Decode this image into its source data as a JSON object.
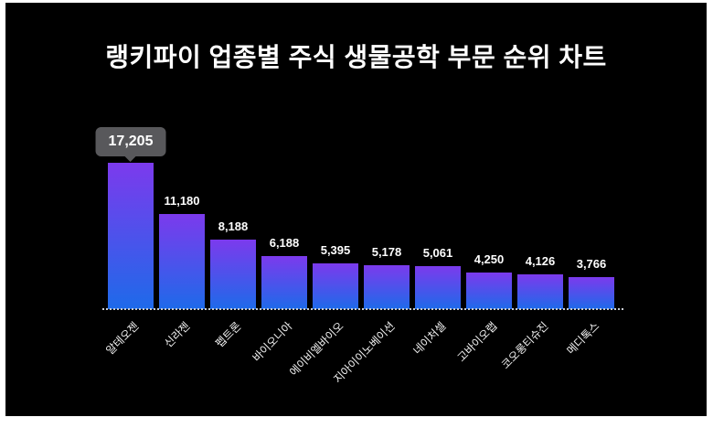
{
  "page": {
    "background": "#ffffff",
    "canvas_background": "#000000"
  },
  "header": {
    "title": "랭키파이 업종별 주식 생물공학 부문 순위 차트"
  },
  "tooltip": {
    "value": "17,205",
    "background": "#58585b",
    "attached_to_category": "알테오젠"
  },
  "chart_data": {
    "type": "bar",
    "title": "랭키파이 업종별 주식 생물공학 부문 순위 차트",
    "categories": [
      "알테오젠",
      "신라젠",
      "펩트론",
      "바이오니아",
      "에이비엘바이오",
      "지아이이노베이션",
      "네이처셀",
      "고바이오랩",
      "코오롱티슈진",
      "메디톡스"
    ],
    "values": [
      17205,
      11180,
      8188,
      6188,
      5395,
      5178,
      5061,
      4250,
      4126,
      3766
    ],
    "values_formatted": [
      "17,205",
      "11,180",
      "8,188",
      "6,188",
      "5,395",
      "5,178",
      "5,061",
      "4,250",
      "4,126",
      "3,766"
    ],
    "highlighted_index": 0,
    "xlabel": "",
    "ylabel": "",
    "ylim": [
      0,
      17205
    ],
    "grid": "off",
    "legend": "none",
    "baseline_style": "dotted",
    "bar_gradient_top": "#7c3aed",
    "bar_gradient_bottom": "#1e6aea",
    "value_label_color": "#ffffff",
    "category_label_rotation_deg": -45
  }
}
